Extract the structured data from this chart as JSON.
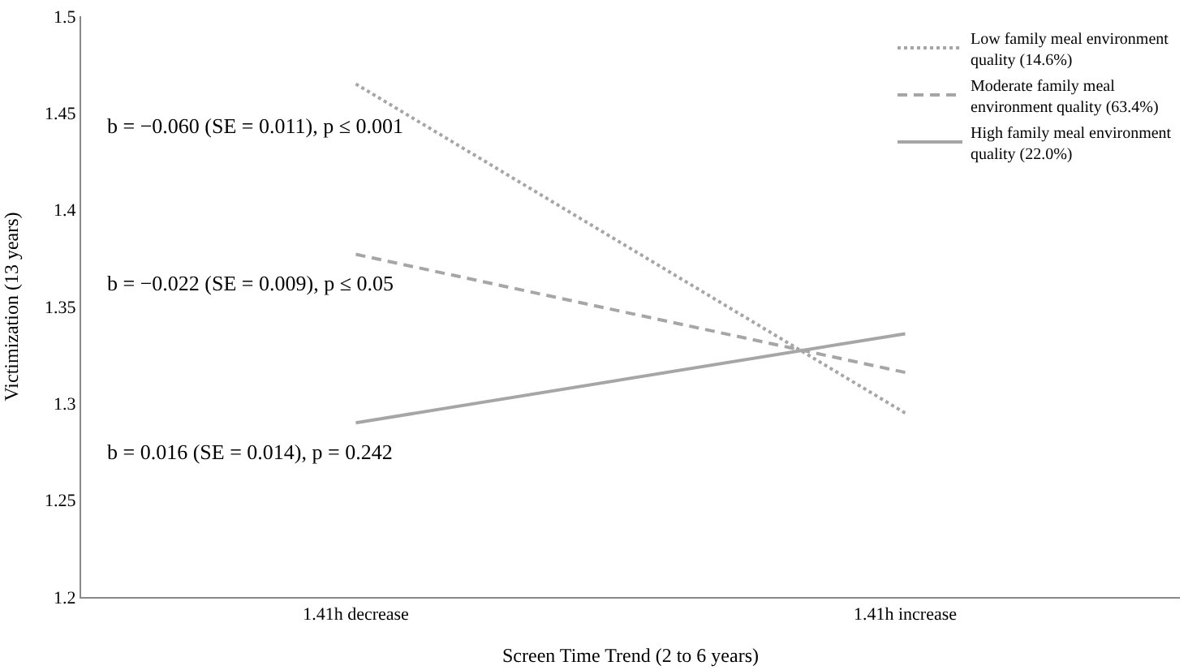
{
  "chart_data": {
    "type": "line",
    "xlabel": "Screen Time Trend (2 to 6 years)",
    "ylabel": "Victimization (13 years)",
    "categories": [
      "1.41h decrease",
      "1.41h increase"
    ],
    "series": [
      {
        "name": "Low family meal environment quality (14.6%)",
        "color": "#a6a6a6",
        "line_style": "dotted",
        "values": [
          1.465,
          1.295
        ]
      },
      {
        "name": "Moderate family meal environment quality (63.4%)",
        "color": "#a6a6a6",
        "line_style": "dashed",
        "values": [
          1.377,
          1.316
        ]
      },
      {
        "name": "High family meal environment quality (22.0%)",
        "color": "#a6a6a6",
        "line_style": "solid",
        "values": [
          1.29,
          1.336
        ]
      }
    ],
    "annotations": [
      "b = −0.060 (SE = 0.011), p ≤ 0.001",
      "b = −0.022 (SE = 0.009), p ≤ 0.05",
      "b = 0.016 (SE = 0.014), p = 0.242"
    ],
    "ylim": [
      1.2,
      1.5
    ],
    "yticks": [
      1.2,
      1.25,
      1.3,
      1.35,
      1.4,
      1.45,
      1.5
    ],
    "legend": "top right",
    "marker": "none"
  }
}
